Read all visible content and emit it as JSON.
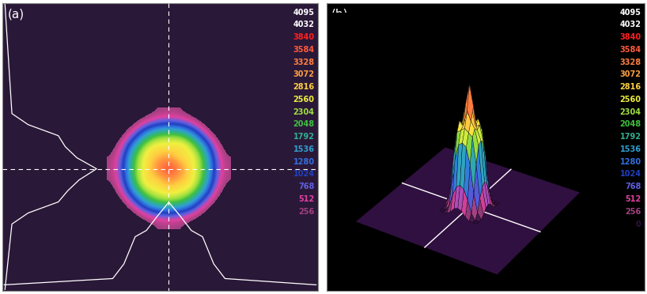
{
  "chart_data": [
    {
      "type": "heatmap",
      "label": "(a)",
      "tick_labels": false,
      "levels": [
        4095,
        4032,
        3840,
        3584,
        3328,
        3072,
        2816,
        2560,
        2304,
        2048,
        1792,
        1536,
        1280,
        1024,
        768,
        512,
        256
      ],
      "colors": [
        "#ffffff",
        "#ffffff",
        "#ff2020",
        "#ff5a3c",
        "#ff7f40",
        "#ffa040",
        "#ffd040",
        "#f0f040",
        "#a0e040",
        "#40c040",
        "#30b090",
        "#30a0d0",
        "#3070e0",
        "#2040c0",
        "#6060e0",
        "#e040a0",
        "#a04080"
      ],
      "cells": [
        [
          0,
          0,
          0,
          100,
          250,
          300,
          250,
          100,
          0,
          0,
          0
        ],
        [
          0,
          0,
          200,
          600,
          900,
          1000,
          900,
          600,
          200,
          0,
          0
        ],
        [
          0,
          200,
          800,
          1700,
          2200,
          2300,
          2200,
          1700,
          800,
          200,
          0
        ],
        [
          100,
          600,
          1700,
          2500,
          2700,
          2600,
          2800,
          2500,
          1700,
          600,
          100
        ],
        [
          250,
          900,
          2200,
          2700,
          2900,
          3100,
          2600,
          2700,
          2200,
          900,
          250
        ],
        [
          300,
          1000,
          2300,
          2600,
          3300,
          3950,
          3300,
          2600,
          2300,
          1000,
          300
        ],
        [
          250,
          900,
          2200,
          2800,
          2700,
          3200,
          2900,
          2700,
          2200,
          900,
          250
        ],
        [
          100,
          600,
          1700,
          2500,
          2600,
          2700,
          2600,
          2500,
          1700,
          600,
          100
        ],
        [
          0,
          200,
          800,
          1700,
          2200,
          2300,
          2200,
          1700,
          800,
          200,
          0
        ],
        [
          0,
          0,
          200,
          600,
          900,
          1000,
          900,
          600,
          200,
          0,
          0
        ],
        [
          0,
          0,
          0,
          100,
          250,
          300,
          250,
          100,
          0,
          0,
          0
        ]
      ]
    },
    {
      "type": "surface",
      "label": "(b)",
      "tick_labels": false,
      "levels": [
        4095,
        4032,
        3840,
        3584,
        3328,
        3072,
        2816,
        2560,
        2304,
        2048,
        1792,
        1536,
        1280,
        1024,
        768,
        512,
        256,
        0
      ],
      "colors": [
        "#ffffff",
        "#ffffff",
        "#ff2020",
        "#ff5a3c",
        "#ff7f40",
        "#ffa040",
        "#ffd040",
        "#f0f040",
        "#a0e040",
        "#40c040",
        "#30b090",
        "#30a0d0",
        "#3070e0",
        "#2040c0",
        "#6060e0",
        "#e040a0",
        "#a04080",
        "#301040"
      ],
      "cells": [
        [
          0,
          0,
          0,
          100,
          250,
          300,
          250,
          100,
          0,
          0,
          0
        ],
        [
          0,
          0,
          200,
          600,
          900,
          1000,
          900,
          600,
          200,
          0,
          0
        ],
        [
          0,
          200,
          800,
          1700,
          2200,
          2300,
          2200,
          1700,
          800,
          200,
          0
        ],
        [
          100,
          600,
          1700,
          2500,
          2700,
          2600,
          2800,
          2500,
          1700,
          600,
          100
        ],
        [
          250,
          900,
          2200,
          2700,
          2900,
          3100,
          2600,
          2700,
          2200,
          900,
          250
        ],
        [
          300,
          1000,
          2300,
          2600,
          3300,
          3950,
          3300,
          2600,
          2300,
          1000,
          300
        ],
        [
          250,
          900,
          2200,
          2800,
          2700,
          3200,
          2900,
          2700,
          2200,
          900,
          250
        ],
        [
          100,
          600,
          1700,
          2500,
          2600,
          2700,
          2600,
          2500,
          1700,
          600,
          100
        ],
        [
          0,
          200,
          800,
          1700,
          2200,
          2300,
          2200,
          1700,
          800,
          200,
          0
        ],
        [
          0,
          0,
          200,
          600,
          900,
          1000,
          900,
          600,
          200,
          0,
          0
        ],
        [
          0,
          0,
          0,
          100,
          250,
          300,
          250,
          100,
          0,
          0,
          0
        ]
      ]
    }
  ]
}
